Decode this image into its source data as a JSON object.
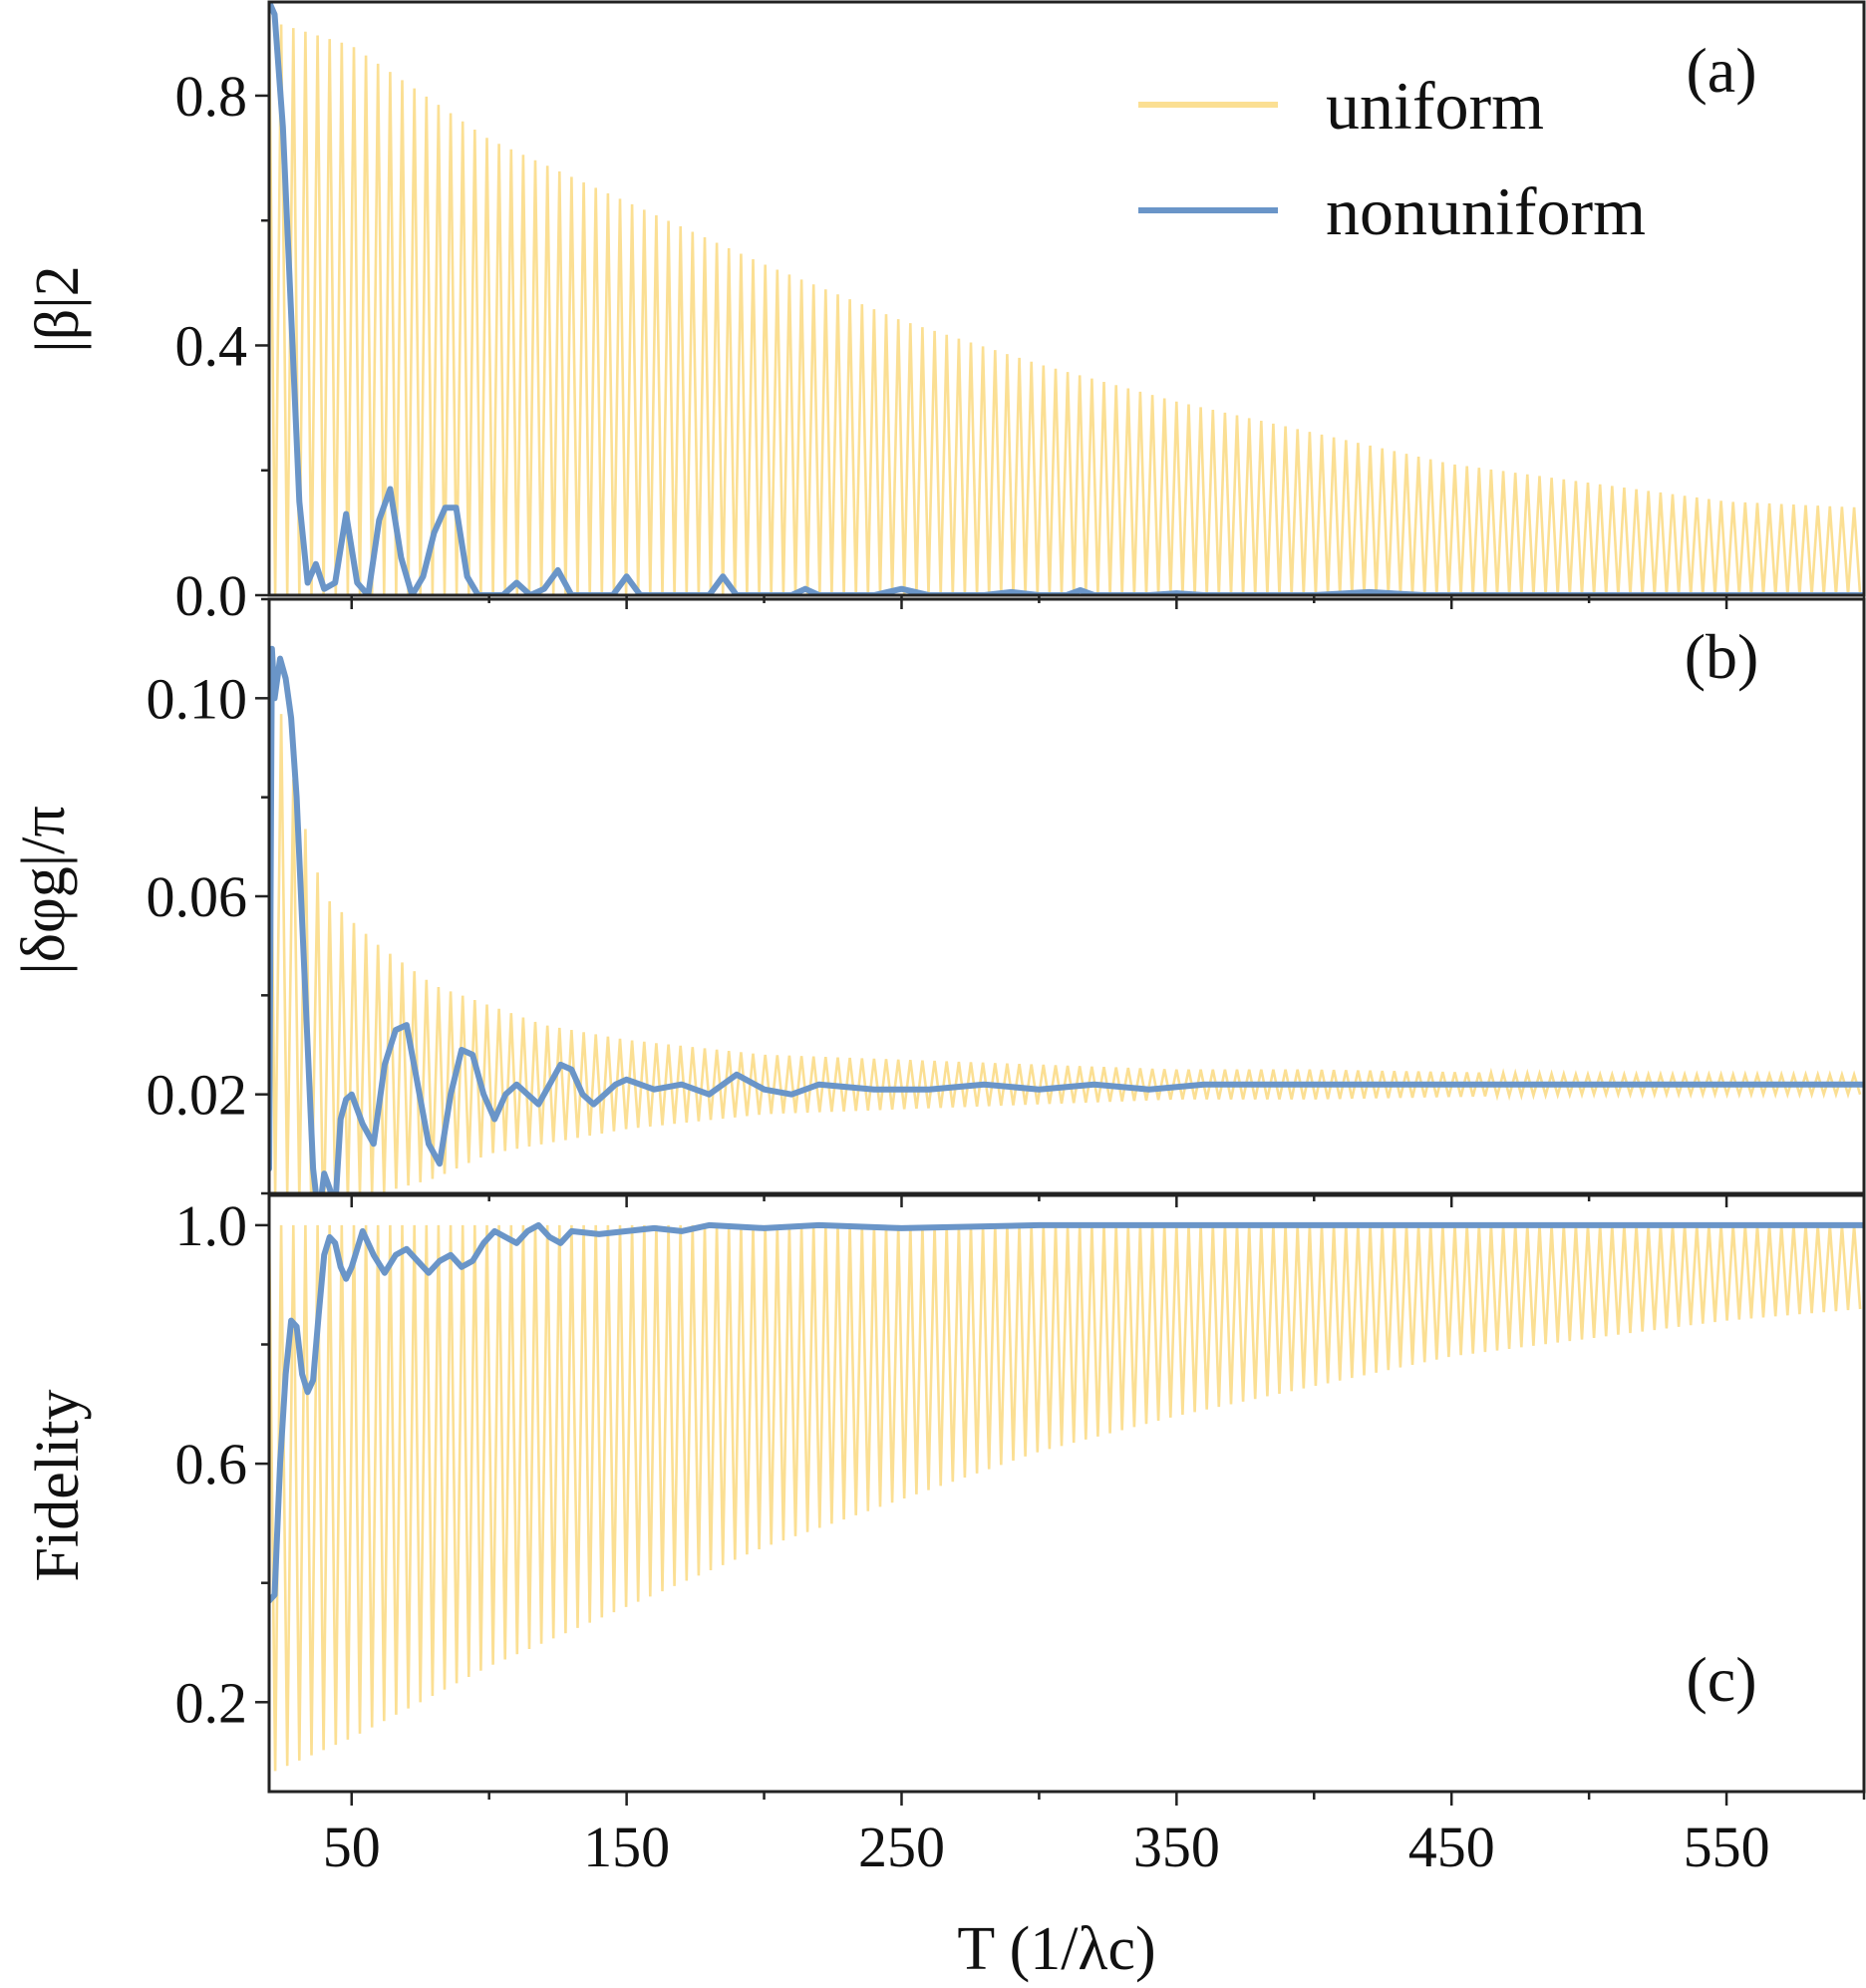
{
  "chart_data": [
    {
      "type": "line",
      "panel_label": "(a)",
      "ylabel": "|β|2",
      "ylim": [
        0.0,
        0.95
      ],
      "yticks": [
        0.0,
        0.4,
        0.8
      ],
      "ytick_labels": [
        "0.0",
        "0.4",
        "0.8"
      ],
      "xlim": [
        20,
        600
      ],
      "legend": {
        "position": "top-right",
        "entries": [
          "uniform",
          "nonuniform"
        ]
      },
      "series": [
        {
          "name": "uniform",
          "kind": "oscillating-envelope",
          "color": "#FBDF93",
          "x": [
            20,
            50,
            100,
            150,
            200,
            250,
            300,
            350,
            400,
            450,
            500,
            550,
            600
          ],
          "upper": [
            0.92,
            0.88,
            0.73,
            0.63,
            0.53,
            0.44,
            0.37,
            0.31,
            0.26,
            0.21,
            0.18,
            0.15,
            0.14
          ],
          "lower": [
            0.0,
            0.0,
            0.0,
            0.0,
            0.0,
            0.0,
            0.0,
            0.0,
            0.0,
            0.0,
            0.0,
            0.0,
            0.0
          ]
        },
        {
          "name": "nonuniform",
          "color": "#6A95C8",
          "x": [
            20,
            22,
            25,
            28,
            31,
            34,
            37,
            40,
            44,
            48,
            52,
            56,
            60,
            64,
            68,
            72,
            76,
            80,
            84,
            88,
            92,
            96,
            100,
            105,
            110,
            115,
            120,
            125,
            130,
            135,
            140,
            145,
            150,
            155,
            160,
            170,
            180,
            185,
            190,
            195,
            200,
            210,
            215,
            220,
            240,
            250,
            260,
            280,
            290,
            300,
            310,
            315,
            320,
            340,
            350,
            360,
            400,
            420,
            440,
            500,
            550,
            600
          ],
          "y": [
            0.95,
            0.93,
            0.75,
            0.45,
            0.15,
            0.02,
            0.05,
            0.01,
            0.02,
            0.13,
            0.02,
            0.0,
            0.12,
            0.17,
            0.06,
            0.0,
            0.03,
            0.1,
            0.14,
            0.14,
            0.03,
            0.0,
            0.0,
            0.0,
            0.02,
            0.0,
            0.01,
            0.04,
            0.0,
            0.0,
            0.0,
            0.0,
            0.03,
            0.0,
            0.0,
            0.0,
            0.0,
            0.03,
            0.0,
            0.0,
            0.0,
            0.0,
            0.01,
            0.0,
            0.0,
            0.01,
            0.0,
            0.0,
            0.005,
            0.0,
            0.0,
            0.008,
            0.0,
            0.0,
            0.003,
            0.0,
            0.0,
            0.005,
            0.0,
            0.0,
            0.0,
            0.0
          ]
        }
      ]
    },
    {
      "type": "line",
      "panel_label": "(b)",
      "ylabel": "|δφg|/π",
      "ylim": [
        -0.0,
        0.12
      ],
      "yticks": [
        0.02,
        0.06,
        0.1
      ],
      "ytick_labels": [
        "0.02",
        "0.06",
        "0.10"
      ],
      "xlim": [
        20,
        600
      ],
      "series": [
        {
          "name": "uniform",
          "kind": "oscillating-envelope",
          "color": "#FBDF93",
          "x": [
            20,
            30,
            40,
            50,
            60,
            80,
            100,
            120,
            150,
            200,
            250,
            300,
            350,
            400,
            500,
            600
          ],
          "upper": [
            0.11,
            0.08,
            0.06,
            0.055,
            0.05,
            0.042,
            0.038,
            0.034,
            0.031,
            0.028,
            0.027,
            0.026,
            0.025,
            0.025,
            0.024,
            0.024
          ],
          "lower": [
            0.0,
            0.0,
            -0.01,
            0.0,
            0.0,
            0.003,
            0.008,
            0.01,
            0.013,
            0.016,
            0.017,
            0.018,
            0.019,
            0.019,
            0.02,
            0.02
          ]
        },
        {
          "name": "nonuniform",
          "color": "#6A95C8",
          "x": [
            20,
            21,
            22,
            24,
            26,
            28,
            30,
            32,
            34,
            36,
            38,
            40,
            42,
            44,
            46,
            48,
            50,
            54,
            58,
            62,
            66,
            70,
            74,
            78,
            82,
            86,
            90,
            94,
            98,
            102,
            106,
            110,
            114,
            118,
            122,
            126,
            130,
            134,
            138,
            142,
            146,
            150,
            160,
            170,
            180,
            190,
            200,
            210,
            220,
            240,
            260,
            280,
            300,
            320,
            340,
            360,
            400,
            450,
            500,
            550,
            600
          ],
          "y": [
            0.005,
            0.11,
            0.1,
            0.108,
            0.104,
            0.096,
            0.08,
            0.055,
            0.03,
            0.005,
            -0.005,
            0.004,
            0.001,
            -0.003,
            0.015,
            0.019,
            0.02,
            0.014,
            0.01,
            0.026,
            0.033,
            0.034,
            0.022,
            0.01,
            0.006,
            0.02,
            0.029,
            0.028,
            0.02,
            0.015,
            0.02,
            0.022,
            0.02,
            0.018,
            0.022,
            0.026,
            0.025,
            0.02,
            0.018,
            0.02,
            0.022,
            0.023,
            0.021,
            0.022,
            0.02,
            0.024,
            0.021,
            0.02,
            0.022,
            0.021,
            0.021,
            0.022,
            0.021,
            0.022,
            0.021,
            0.022,
            0.022,
            0.022,
            0.022,
            0.022,
            0.022
          ]
        }
      ]
    },
    {
      "type": "line",
      "panel_label": "(c)",
      "ylabel": "Fidelity",
      "xlabel": "T (1/λc)",
      "ylim": [
        0.05,
        1.05
      ],
      "yticks": [
        0.2,
        0.6,
        1.0
      ],
      "ytick_labels": [
        "0.2",
        "0.6",
        "1.0"
      ],
      "xlim": [
        20,
        600
      ],
      "xticks": [
        50,
        150,
        250,
        350,
        450,
        550
      ],
      "xtick_labels": [
        "50",
        "150",
        "250",
        "350",
        "450",
        "550"
      ],
      "series": [
        {
          "name": "uniform",
          "kind": "oscillating-envelope",
          "color": "#FBDF93",
          "x": [
            20,
            50,
            100,
            150,
            200,
            250,
            300,
            350,
            400,
            450,
            500,
            550,
            600
          ],
          "upper": [
            1.0,
            1.0,
            1.0,
            1.0,
            1.0,
            1.0,
            1.0,
            1.0,
            1.0,
            1.0,
            1.0,
            1.0,
            1.0
          ],
          "lower": [
            0.08,
            0.14,
            0.26,
            0.36,
            0.46,
            0.54,
            0.62,
            0.68,
            0.73,
            0.78,
            0.81,
            0.84,
            0.86
          ]
        },
        {
          "name": "nonuniform",
          "color": "#6A95C8",
          "x": [
            20,
            22,
            24,
            26,
            28,
            30,
            32,
            34,
            36,
            38,
            40,
            42,
            44,
            46,
            48,
            50,
            54,
            58,
            62,
            66,
            70,
            74,
            78,
            82,
            86,
            90,
            94,
            98,
            102,
            106,
            110,
            114,
            118,
            122,
            126,
            130,
            140,
            150,
            160,
            170,
            180,
            200,
            220,
            250,
            300,
            400,
            500,
            600
          ],
          "y": [
            0.37,
            0.38,
            0.6,
            0.75,
            0.84,
            0.83,
            0.75,
            0.72,
            0.74,
            0.85,
            0.95,
            0.98,
            0.97,
            0.93,
            0.91,
            0.93,
            0.99,
            0.95,
            0.92,
            0.95,
            0.96,
            0.94,
            0.92,
            0.94,
            0.95,
            0.93,
            0.94,
            0.97,
            0.99,
            0.98,
            0.97,
            0.99,
            1.0,
            0.98,
            0.97,
            0.99,
            0.985,
            0.99,
            0.995,
            0.99,
            1.0,
            0.995,
            1.0,
            0.995,
            1.0,
            1.0,
            1.0,
            1.0
          ]
        }
      ]
    }
  ]
}
